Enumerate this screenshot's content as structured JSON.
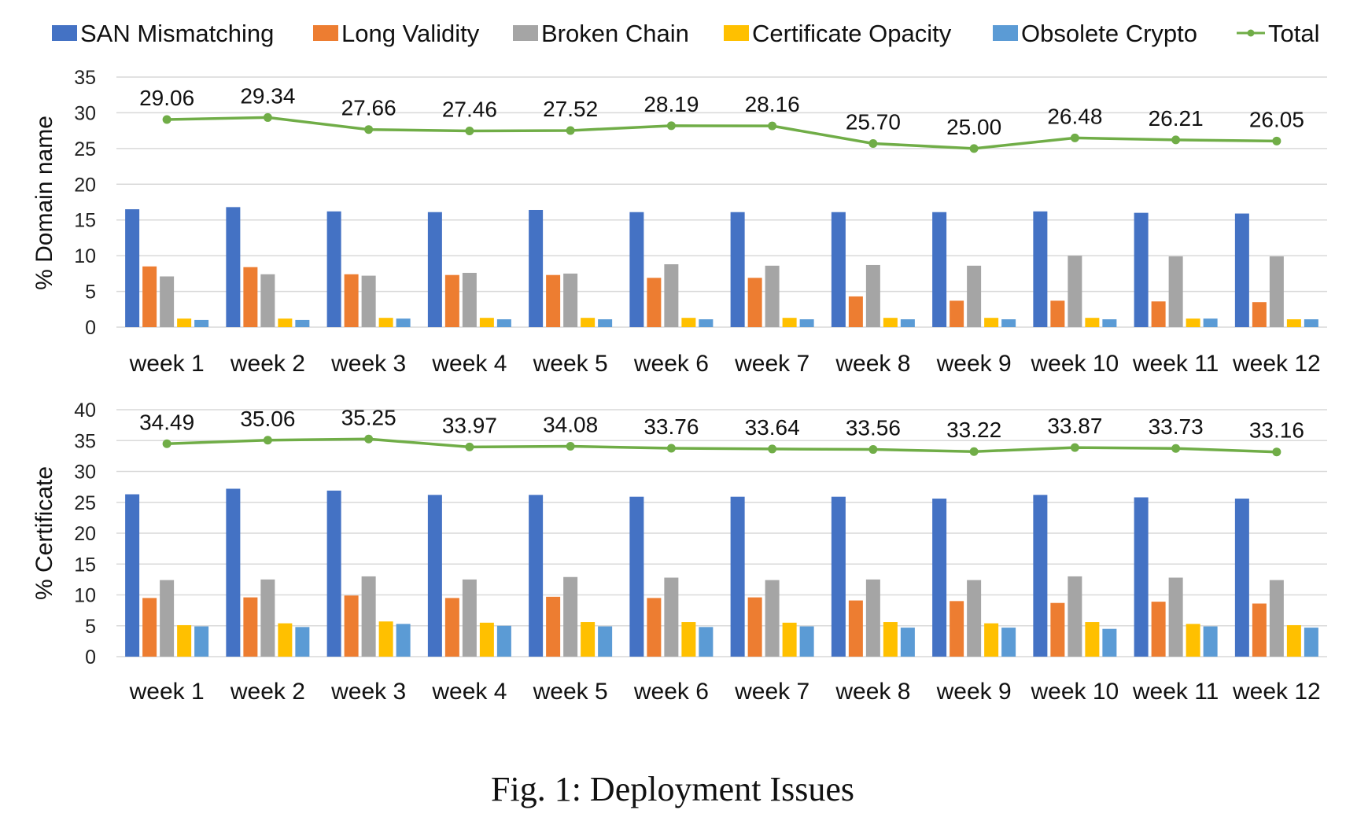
{
  "caption": "Fig. 1: Deployment Issues",
  "colors": {
    "SAN Mismatching": "#4472C4",
    "Long Validity": "#ED7D31",
    "Broken Chain": "#A5A5A5",
    "Certificate Opacity": "#FFC000",
    "Obsolete Crypto": "#5B9BD5",
    "Total": "#70AD47"
  },
  "legend": {
    "position": "top",
    "entries": [
      {
        "label": "SAN Mismatching",
        "marker": "square"
      },
      {
        "label": "Long Validity",
        "marker": "square"
      },
      {
        "label": "Broken Chain",
        "marker": "square"
      },
      {
        "label": "Certificate Opacity",
        "marker": "square"
      },
      {
        "label": "Obsolete Crypto",
        "marker": "square"
      },
      {
        "label": "Total",
        "marker": "line"
      }
    ]
  },
  "chart_data": [
    {
      "type": "bar",
      "ylabel": "% Domain name",
      "ylim": [
        0,
        35
      ],
      "yticks": [
        0,
        5,
        10,
        15,
        20,
        25,
        30,
        35
      ],
      "grid": true,
      "categories": [
        "week 1",
        "week 2",
        "week 3",
        "week 4",
        "week 5",
        "week 6",
        "week 7",
        "week 8",
        "week 9",
        "week 10",
        "week 11",
        "week 12"
      ],
      "series": [
        {
          "name": "SAN Mismatching",
          "values": [
            16.5,
            16.8,
            16.2,
            16.1,
            16.4,
            16.1,
            16.1,
            16.1,
            16.1,
            16.2,
            16.0,
            15.9
          ]
        },
        {
          "name": "Long Validity",
          "values": [
            8.5,
            8.4,
            7.4,
            7.3,
            7.3,
            6.9,
            6.9,
            4.3,
            3.7,
            3.7,
            3.6,
            3.5
          ]
        },
        {
          "name": "Broken Chain",
          "values": [
            7.1,
            7.4,
            7.2,
            7.6,
            7.5,
            8.8,
            8.6,
            8.7,
            8.6,
            10.0,
            9.9,
            9.9
          ]
        },
        {
          "name": "Certificate Opacity",
          "values": [
            1.2,
            1.2,
            1.3,
            1.3,
            1.3,
            1.3,
            1.3,
            1.3,
            1.3,
            1.3,
            1.2,
            1.1
          ]
        },
        {
          "name": "Obsolete Crypto",
          "values": [
            1.0,
            1.0,
            1.2,
            1.1,
            1.1,
            1.1,
            1.1,
            1.1,
            1.1,
            1.1,
            1.2,
            1.1
          ]
        }
      ],
      "line": {
        "name": "Total",
        "values": [
          29.06,
          29.34,
          27.66,
          27.46,
          27.52,
          28.19,
          28.16,
          25.7,
          25.0,
          26.48,
          26.21,
          26.05
        ],
        "labels": [
          "29.06",
          "29.34",
          "27.66",
          "27.46",
          "27.52",
          "28.19",
          "28.16",
          "25.70",
          "25.00",
          "26.48",
          "26.21",
          "26.05"
        ]
      }
    },
    {
      "type": "bar",
      "ylabel": "% Certificate",
      "ylim": [
        0,
        40
      ],
      "yticks": [
        0,
        5,
        10,
        15,
        20,
        25,
        30,
        35,
        40
      ],
      "grid": true,
      "categories": [
        "week 1",
        "week 2",
        "week 3",
        "week 4",
        "week 5",
        "week 6",
        "week 7",
        "week 8",
        "week 9",
        "week 10",
        "week 11",
        "week 12"
      ],
      "series": [
        {
          "name": "SAN Mismatching",
          "values": [
            26.3,
            27.2,
            26.9,
            26.2,
            26.2,
            25.9,
            25.9,
            25.9,
            25.6,
            26.2,
            25.8,
            25.6
          ]
        },
        {
          "name": "Long Validity",
          "values": [
            9.5,
            9.6,
            9.9,
            9.5,
            9.7,
            9.5,
            9.6,
            9.1,
            9.0,
            8.7,
            8.9,
            8.6
          ]
        },
        {
          "name": "Broken Chain",
          "values": [
            12.4,
            12.5,
            13.0,
            12.5,
            12.9,
            12.8,
            12.4,
            12.5,
            12.4,
            13.0,
            12.8,
            12.4
          ]
        },
        {
          "name": "Certificate Opacity",
          "values": [
            5.1,
            5.4,
            5.7,
            5.5,
            5.6,
            5.6,
            5.5,
            5.6,
            5.4,
            5.6,
            5.3,
            5.1
          ]
        },
        {
          "name": "Obsolete Crypto",
          "values": [
            4.9,
            4.8,
            5.3,
            5.0,
            4.9,
            4.8,
            4.9,
            4.7,
            4.7,
            4.5,
            4.9,
            4.7
          ]
        }
      ],
      "line": {
        "name": "Total",
        "values": [
          34.49,
          35.06,
          35.25,
          33.97,
          34.08,
          33.76,
          33.64,
          33.56,
          33.22,
          33.87,
          33.73,
          33.16
        ],
        "labels": [
          "34.49",
          "35.06",
          "35.25",
          "33.97",
          "34.08",
          "33.76",
          "33.64",
          "33.56",
          "33.22",
          "33.87",
          "33.73",
          "33.16"
        ]
      }
    }
  ]
}
